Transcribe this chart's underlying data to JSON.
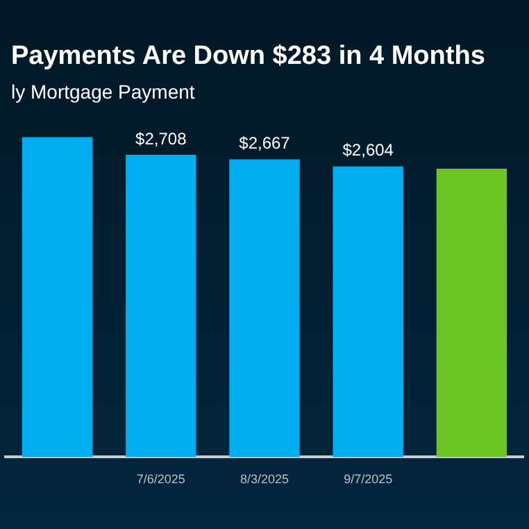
{
  "chart_data": {
    "type": "bar",
    "title": "Payments Are Down $283 in 4 Months",
    "subtitle": "ly Mortgage Payment",
    "categories": [
      null,
      "7/6/2025",
      "8/3/2025",
      "9/7/2025",
      null
    ],
    "values": [
      2866,
      2708,
      2667,
      2604,
      2583
    ],
    "value_labels": [
      null,
      "$2,708",
      "$2,667",
      "$2,604",
      null
    ],
    "colors": [
      "#00aeef",
      "#00aeef",
      "#00aeef",
      "#00aeef",
      "#6cc524"
    ],
    "grid": false,
    "legend": false
  }
}
